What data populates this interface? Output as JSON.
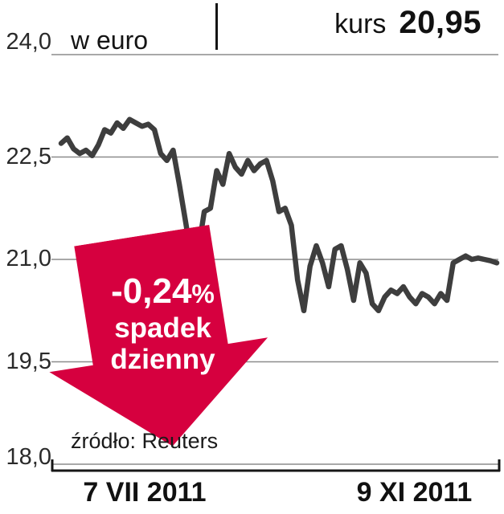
{
  "header": {
    "price_label": "kurs",
    "price_value": "20,95",
    "unit_label": "w euro"
  },
  "badge": {
    "percent_value": "-0,24",
    "percent_sign": "%",
    "line1": "spadek",
    "line2": "dzienny",
    "color": "#d6003f"
  },
  "source_label": "źródło: Reuters",
  "chart_data": {
    "type": "line",
    "title": "kurs 20,95",
    "unit": "w euro",
    "x_tick_labels": [
      "7 VII 2011",
      "9 XI 2011"
    ],
    "y_ticks": [
      24.0,
      22.5,
      21.0,
      19.5,
      18.0
    ],
    "y_tick_labels": [
      "24,0",
      "22,5",
      "21,0",
      "19,5",
      "18,0"
    ],
    "ylim": [
      18.0,
      24.0
    ],
    "grid": true,
    "legend": "none",
    "line_color": "#3e3e3e",
    "last_value": 20.95,
    "daily_change_percent": -0.24,
    "values": [
      22.7,
      22.78,
      22.62,
      22.55,
      22.6,
      22.52,
      22.68,
      22.9,
      22.85,
      23.0,
      22.92,
      23.05,
      23.0,
      22.95,
      22.98,
      22.9,
      22.55,
      22.45,
      22.6,
      22.1,
      21.55,
      21.0,
      21.1,
      21.7,
      21.75,
      22.3,
      22.1,
      22.55,
      22.35,
      22.25,
      22.45,
      22.3,
      22.4,
      22.45,
      22.15,
      21.7,
      21.75,
      21.5,
      20.7,
      20.25,
      20.9,
      21.2,
      20.95,
      20.6,
      21.15,
      21.2,
      20.85,
      20.4,
      20.95,
      20.8,
      20.35,
      20.25,
      20.45,
      20.55,
      20.5,
      20.6,
      20.45,
      20.35,
      20.5,
      20.45,
      20.35,
      20.5,
      20.4,
      20.95,
      21.0,
      21.05,
      21.0,
      21.02,
      21.0,
      20.98,
      20.95
    ]
  }
}
